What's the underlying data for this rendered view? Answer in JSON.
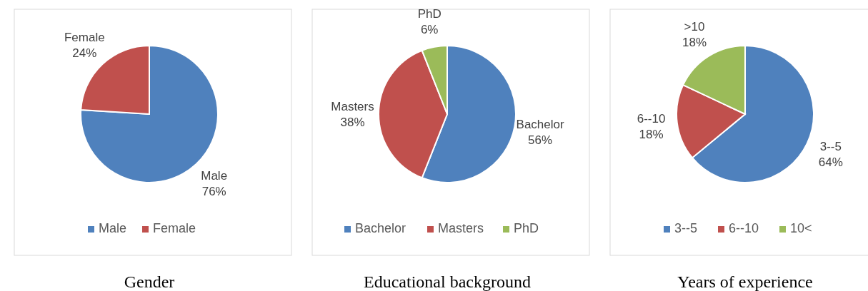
{
  "chart_data": [
    {
      "type": "pie",
      "title": "Gender",
      "categories": [
        "Male",
        "Female"
      ],
      "values": [
        76,
        24
      ],
      "colors": [
        "#4f81bd",
        "#c0504d"
      ],
      "value_labels": [
        "Male\n76%",
        "Female\n24%"
      ],
      "legend": "bottom"
    },
    {
      "type": "pie",
      "title": "Educational background",
      "categories": [
        "Bachelor",
        "Masters",
        "PhD"
      ],
      "values": [
        56,
        38,
        6
      ],
      "colors": [
        "#4f81bd",
        "#c0504d",
        "#9bbb59"
      ],
      "value_labels": [
        "Bachelor\n56%",
        "Masters\n38%",
        "PhD\n6%"
      ],
      "legend": "bottom"
    },
    {
      "type": "pie",
      "title": "Years of experience",
      "categories": [
        "3--5",
        "6--10",
        "10<"
      ],
      "values": [
        64,
        18,
        18
      ],
      "colors": [
        "#4f81bd",
        "#c0504d",
        "#9bbb59"
      ],
      "value_labels": [
        "3--5\n64%",
        "6--10\n18%",
        ">10\n18%"
      ],
      "legend": "bottom"
    }
  ]
}
